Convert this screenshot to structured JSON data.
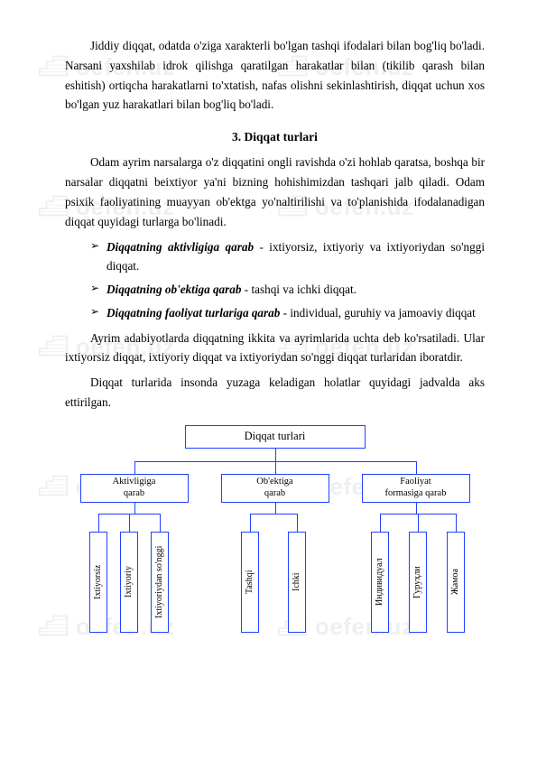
{
  "watermark": {
    "text": "oefen.uz"
  },
  "paragraphs": {
    "p1": "Jiddiy diqqat, odatda o'ziga xarakterli bo'lgan tashqi ifodalari bilan bog'liq bo'ladi. Narsani yaxshilab idrok qilishga qaratilgan harakatlar bilan (tikilib qarash bilan eshitish) ortiqcha harakatlarni to'xtatish, nafas olishni sekinlashtirish, diqqat uchun xos bo'lgan yuz harakatlari bilan bog'liq bo'ladi.",
    "section_title": "3. Diqqat turlari",
    "p2": "Odam ayrim narsalarga o'z diqqatini ongli ravishda o'zi hohlab qaratsa, boshqa bir narsalar diqqatni beixtiyor ya'ni bizning hohishimizdan tashqari jalb qiladi. Odam psixik faoliyatining muayyan ob'ektga yo'naltirilishi va to'planishida ifodalanadigan diqqat quyidagi turlarga bo'linadi.",
    "p3": "Ayrim adabiyotlarda diqqatning ikkita va ayrimlarida uchta deb ko'rsatiladi. Ular ixtiyorsiz diqqat, ixtiyoriy diqqat va ixtiyoriydan so'nggi diqqat turlaridan iboratdir.",
    "p4": "Diqqat turlarida insonda yuzaga keladigan holatlar quyidagi jadvalda aks ettirilgan."
  },
  "bullets": {
    "b1_label": "Diqqatning aktivligiga qarab",
    "b1_rest": " - ixtiyorsiz, ixtiyoriy va ixtiyoriydan so'nggi diqqat.",
    "b2_label": "Diqqatning ob'ektiga qarab",
    "b2_rest": " - tashqi va ichki diqqat.",
    "b3_label": "Diqqatning faoliyat turlariga qarab",
    "b3_rest": " - individual, guruhiy va jamoaviy diqqat"
  },
  "diagram": {
    "type": "tree",
    "root": "Diqqat turlari",
    "categories": {
      "c1": "Aktivligiga\nqarab",
      "c2": "Ob'ektiga\nqarab",
      "c3": "Faoliyat\nformasiga qarab"
    },
    "leaves": {
      "l1": "Ixtiyorsiz",
      "l2": "Ixtiyoriy",
      "l3": "Ixtiyoriydan so'nggi",
      "l4": "Tashqi",
      "l5": "Ichki",
      "l6": "Индивидуал",
      "l7": "Гуруҳли",
      "l8": "Жамоа"
    },
    "colors": {
      "border": "#2040ff",
      "background": "#ffffff",
      "text": "#000000"
    },
    "font_sizes": {
      "root": 12.5,
      "category": 10.5,
      "leaf": 10
    }
  }
}
